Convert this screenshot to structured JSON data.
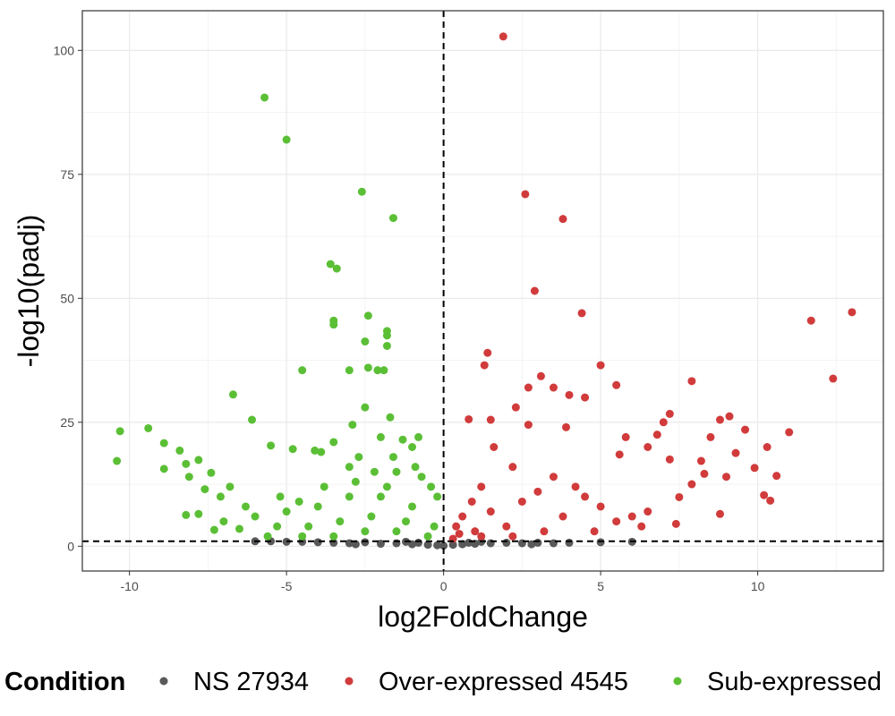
{
  "chart_data": {
    "type": "scatter",
    "title": "",
    "xlabel": "log2FoldChange",
    "ylabel": "-log10(padj)",
    "xlim": [
      -11.5,
      14
    ],
    "ylim": [
      -5,
      108
    ],
    "x_ticks": [
      -10,
      -5,
      0,
      5,
      10
    ],
    "y_ticks": [
      0,
      25,
      50,
      75,
      100
    ],
    "grid": true,
    "reference_lines": [
      {
        "orientation": "vertical",
        "value": 0,
        "style": "dashed"
      },
      {
        "orientation": "horizontal",
        "value": 1,
        "style": "dashed"
      }
    ],
    "legend": {
      "title": "Condition",
      "position": "bottom",
      "entries": [
        {
          "label": "NS 27934",
          "color": "#595959"
        },
        {
          "label": "Over-expressed 4545",
          "color": "#d13b3b"
        },
        {
          "label": "Sub-expressed",
          "color": "#5bbf36"
        }
      ]
    },
    "series": [
      {
        "name": "NS 27934",
        "color": "#595959",
        "points": [
          [
            -6,
            1.0
          ],
          [
            -5,
            0.9
          ],
          [
            -4,
            0.8
          ],
          [
            -3.5,
            0.7
          ],
          [
            -3,
            0.6
          ],
          [
            -2.5,
            0.8
          ],
          [
            -2,
            0.5
          ],
          [
            -1.5,
            0.6
          ],
          [
            -1,
            0.4
          ],
          [
            -0.5,
            0.3
          ],
          [
            -0.2,
            0.2
          ],
          [
            0,
            0.1
          ],
          [
            0.3,
            0.3
          ],
          [
            0.6,
            0.4
          ],
          [
            1,
            0.5
          ],
          [
            1.5,
            0.6
          ],
          [
            2,
            0.7
          ],
          [
            2.5,
            0.6
          ],
          [
            3,
            0.7
          ],
          [
            3.5,
            0.6
          ],
          [
            4,
            0.7
          ],
          [
            5,
            0.8
          ],
          [
            6,
            0.9
          ],
          [
            -4.5,
            0.9
          ],
          [
            -5.5,
            1.0
          ],
          [
            -1.2,
            0.9
          ],
          [
            1.2,
            0.9
          ],
          [
            -0.8,
            0.7
          ],
          [
            0.8,
            0.7
          ],
          [
            -2.8,
            0.4
          ],
          [
            2.8,
            0.4
          ]
        ]
      },
      {
        "name": "Over-expressed 4545",
        "color": "#d13b3b",
        "points": [
          [
            1.9,
            102.8
          ],
          [
            2.6,
            71
          ],
          [
            3.8,
            66
          ],
          [
            2.9,
            51.5
          ],
          [
            4.4,
            47
          ],
          [
            13,
            47.2
          ],
          [
            11.7,
            45.5
          ],
          [
            1.4,
            39
          ],
          [
            1.3,
            36.5
          ],
          [
            5,
            36.5
          ],
          [
            3.1,
            34.3
          ],
          [
            12.4,
            33.8
          ],
          [
            7.9,
            33.3
          ],
          [
            2.7,
            32
          ],
          [
            5.5,
            32.5
          ],
          [
            3.5,
            32
          ],
          [
            4,
            30.5
          ],
          [
            4.5,
            30
          ],
          [
            2.3,
            28
          ],
          [
            7.2,
            26.7
          ],
          [
            9.1,
            26.2
          ],
          [
            8.8,
            25.5
          ],
          [
            7,
            25
          ],
          [
            1.5,
            25.5
          ],
          [
            0.8,
            25.6
          ],
          [
            2.7,
            24.5
          ],
          [
            3.9,
            24
          ],
          [
            9.6,
            23.5
          ],
          [
            11,
            23
          ],
          [
            6.8,
            22.5
          ],
          [
            5.8,
            22
          ],
          [
            8.5,
            22
          ],
          [
            10.3,
            20
          ],
          [
            6.5,
            20
          ],
          [
            1.6,
            20
          ],
          [
            5.6,
            18.5
          ],
          [
            9.3,
            18.8
          ],
          [
            7.2,
            17.5
          ],
          [
            8.2,
            17.2
          ],
          [
            9.9,
            15.8
          ],
          [
            10.6,
            14.2
          ],
          [
            8.3,
            14.6
          ],
          [
            7.9,
            12.5
          ],
          [
            9,
            14
          ],
          [
            10.2,
            10.3
          ],
          [
            10.4,
            9.2
          ],
          [
            7.5,
            9.9
          ],
          [
            8.8,
            6.5
          ],
          [
            7.4,
            4.5
          ],
          [
            6,
            6
          ],
          [
            6.5,
            7
          ],
          [
            4.2,
            12
          ],
          [
            3.5,
            14
          ],
          [
            2.2,
            16
          ],
          [
            1.2,
            12
          ],
          [
            0.9,
            9
          ],
          [
            0.6,
            6
          ],
          [
            0.4,
            4
          ],
          [
            0.5,
            2.5
          ],
          [
            1.5,
            7
          ],
          [
            2.5,
            9
          ],
          [
            3,
            11
          ],
          [
            4.5,
            10
          ],
          [
            5,
            8
          ],
          [
            5.5,
            5
          ],
          [
            3.8,
            6
          ],
          [
            2,
            4
          ],
          [
            1,
            3
          ],
          [
            6.3,
            4
          ],
          [
            4.8,
            3
          ],
          [
            3.2,
            3
          ],
          [
            2.2,
            2
          ],
          [
            1.2,
            2
          ],
          [
            0.3,
            1.5
          ]
        ]
      },
      {
        "name": "Sub-expressed",
        "color": "#5bbf36",
        "points": [
          [
            -5.7,
            90.5
          ],
          [
            -5,
            82
          ],
          [
            -2.6,
            71.5
          ],
          [
            -1.6,
            66.2
          ],
          [
            -3.6,
            56.9
          ],
          [
            -3.4,
            56
          ],
          [
            -2.4,
            46.5
          ],
          [
            -3.5,
            45.5
          ],
          [
            -3.5,
            44.7
          ],
          [
            -1.8,
            43.4
          ],
          [
            -1.8,
            42.5
          ],
          [
            -2.5,
            41.3
          ],
          [
            -1.8,
            40.4
          ],
          [
            -4.5,
            35.5
          ],
          [
            -3,
            35.5
          ],
          [
            -2.4,
            36
          ],
          [
            -2.1,
            35.5
          ],
          [
            -1.9,
            35.5
          ],
          [
            -6.7,
            30.6
          ],
          [
            -6.1,
            25.5
          ],
          [
            -10.3,
            23.2
          ],
          [
            -9.4,
            23.8
          ],
          [
            -10.4,
            17.2
          ],
          [
            -8.9,
            20.8
          ],
          [
            -8.4,
            19.3
          ],
          [
            -8.2,
            16.6
          ],
          [
            -7.8,
            17.4
          ],
          [
            -8.9,
            15.6
          ],
          [
            -8.1,
            14
          ],
          [
            -7.4,
            14.8
          ],
          [
            -5.5,
            20.3
          ],
          [
            -4.8,
            19.6
          ],
          [
            -4.1,
            19.3
          ],
          [
            -3.9,
            19
          ],
          [
            -3.5,
            21
          ],
          [
            -2.9,
            24.5
          ],
          [
            -2.5,
            28
          ],
          [
            -1.7,
            26
          ],
          [
            -1.3,
            21.5
          ],
          [
            -2,
            22
          ],
          [
            -0.8,
            22
          ],
          [
            -1,
            20
          ],
          [
            -2.7,
            18
          ],
          [
            -3,
            16
          ],
          [
            -2.2,
            15
          ],
          [
            -1.5,
            15
          ],
          [
            -0.7,
            14
          ],
          [
            -0.4,
            12
          ],
          [
            -0.2,
            10
          ],
          [
            -1,
            8
          ],
          [
            -2,
            10
          ],
          [
            -3,
            10
          ],
          [
            -4,
            8
          ],
          [
            -5,
            7
          ],
          [
            -6,
            6
          ],
          [
            -7,
            5
          ],
          [
            -7.8,
            6.5
          ],
          [
            -8.2,
            6.3
          ],
          [
            -7.3,
            3.3
          ],
          [
            -6.5,
            3.5
          ],
          [
            -5.6,
            2
          ],
          [
            -4.5,
            2
          ],
          [
            -3.5,
            2
          ],
          [
            -2.5,
            3
          ],
          [
            -1.5,
            3
          ],
          [
            -0.5,
            2
          ],
          [
            -0.3,
            4
          ],
          [
            -1.2,
            5
          ],
          [
            -2.3,
            6
          ],
          [
            -3.3,
            5
          ],
          [
            -4.3,
            4
          ],
          [
            -5.3,
            4
          ],
          [
            -6.3,
            8
          ],
          [
            -7.1,
            10
          ],
          [
            -7.6,
            11.5
          ],
          [
            -6.8,
            12
          ],
          [
            -5.2,
            10
          ],
          [
            -4.6,
            9
          ],
          [
            -3.8,
            12
          ],
          [
            -2.8,
            13
          ],
          [
            -1.8,
            12
          ],
          [
            -0.9,
            16
          ],
          [
            -1.6,
            18
          ]
        ]
      }
    ]
  }
}
